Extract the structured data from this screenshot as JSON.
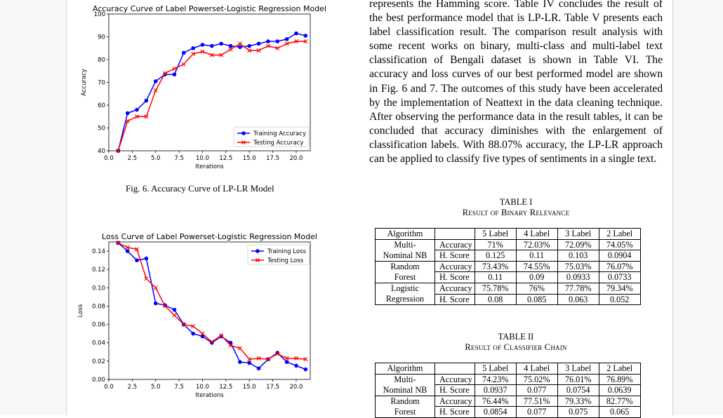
{
  "figure6": {
    "plot_title": "Accuracy Curve of Label Powerset-Logistic Regression Model",
    "xlabel": "Iterations",
    "ylabel": "Accuracy",
    "caption": "Fig. 6.  Accuracy Curve of LP-LR Model",
    "xticks": [
      "0.0",
      "2.5",
      "5.0",
      "7.5",
      "10.0",
      "12.5",
      "15.0",
      "17.5",
      "20.0"
    ],
    "yticks": [
      "40",
      "50",
      "60",
      "70",
      "80",
      "90",
      "100"
    ],
    "legend": [
      "Training Accuracy",
      "Testing Accuracy"
    ]
  },
  "figure7": {
    "plot_title": "Loss Curve of Label Powerset-Logistic Regression Model",
    "xlabel": "Iterations",
    "ylabel": "Loss",
    "xticks": [
      "0.0",
      "2.5",
      "5.0",
      "7.5",
      "10.0",
      "12.5",
      "15.0",
      "17.5",
      "20.0"
    ],
    "yticks": [
      "0.00",
      "0.02",
      "0.04",
      "0.06",
      "0.08",
      "0.10",
      "0.12",
      "0.14"
    ],
    "legend": [
      "Training Loss",
      "Testing Loss"
    ]
  },
  "chart_data": [
    {
      "type": "line",
      "title": "Accuracy Curve of Label Powerset-Logistic Regression Model",
      "xlabel": "Iterations",
      "ylabel": "Accuracy",
      "xlim": [
        0,
        21.5
      ],
      "ylim": [
        40,
        100
      ],
      "x": [
        1,
        2,
        3,
        4,
        5,
        6,
        7,
        8,
        9,
        10,
        11,
        12,
        13,
        14,
        15,
        16,
        17,
        18,
        19,
        20,
        21
      ],
      "series": [
        {
          "name": "Training Accuracy",
          "color": "#0000ff",
          "marker": "circle",
          "values": [
            40,
            56.5,
            58,
            62,
            70.5,
            73.5,
            73.5,
            83,
            85,
            86.5,
            86,
            87,
            86,
            85.5,
            86,
            87,
            88,
            88,
            89,
            91.5,
            90.5
          ]
        },
        {
          "name": "Testing Accuracy",
          "color": "#ff0000",
          "marker": "x",
          "values": [
            40,
            53,
            55,
            55,
            66.5,
            74,
            76,
            78,
            82.5,
            83.5,
            82,
            82,
            84.5,
            87,
            84,
            84,
            86,
            85,
            87,
            88,
            88
          ]
        }
      ],
      "legend_position": "lower right",
      "grid": false
    },
    {
      "type": "line",
      "title": "Loss Curve of Label Powerset-Logistic Regression Model",
      "xlabel": "Iterations",
      "ylabel": "Loss",
      "xlim": [
        0,
        21.5
      ],
      "ylim": [
        0,
        0.15
      ],
      "x": [
        1,
        2,
        3,
        4,
        5,
        6,
        7,
        8,
        9,
        10,
        11,
        12,
        13,
        14,
        15,
        16,
        17,
        18,
        19,
        20,
        21
      ],
      "series": [
        {
          "name": "Training Loss",
          "color": "#0000ff",
          "marker": "circle",
          "values": [
            0.149,
            0.14,
            0.13,
            0.132,
            0.083,
            0.081,
            0.076,
            0.06,
            0.05,
            0.047,
            0.04,
            0.047,
            0.04,
            0.019,
            0.018,
            0.012,
            0.022,
            0.029,
            0.019,
            0.015,
            0.011
          ]
        },
        {
          "name": "Testing Loss",
          "color": "#ff0000",
          "marker": "x",
          "values": [
            0.149,
            0.144,
            0.142,
            0.11,
            0.1,
            0.08,
            0.07,
            0.06,
            0.058,
            0.05,
            0.041,
            0.048,
            0.037,
            0.034,
            0.022,
            0.023,
            0.022,
            0.028,
            0.023,
            0.023,
            0.022
          ]
        }
      ],
      "legend_position": "upper right",
      "grid": false
    }
  ],
  "body_paragraph": "represents the Hamming score. Table IV concludes the result of the best performance model that is LP-LR. Table V presents each label classification result. The comparison result analysis with some recent works on binary, multi-class and multi-label text classification of Bengali dataset is shown in Table VI. The accuracy and loss curves of our best performed model are shown in Fig. 6 and 7. The outcomes of this study have been accelerated by the implementation of Neattext in the data cleaning technique. After observing the performance data in the result tables, it can be concluded that accuracy diminishes with the enlargement of classification labels. With 88.07% accuracy, the LP-LR approach can be applied to classify five types of sentiments in a single text.",
  "table1": {
    "number": "TABLE I",
    "title": "Result of Binary Relevance",
    "header": [
      "Algorithm",
      "",
      "5 Label",
      "4 Label",
      "3 Label",
      "2 Label"
    ],
    "rows": [
      {
        "algo": [
          "Multi-",
          "Nominal NB"
        ],
        "metrics": [
          [
            "Accuracy",
            "71%",
            "72.03%",
            "72.09%",
            "74.05%"
          ],
          [
            "H. Score",
            "0.125",
            "0.11",
            "0.103",
            "0.0904"
          ]
        ]
      },
      {
        "algo": [
          "Random",
          "Forest"
        ],
        "metrics": [
          [
            "Accuracy",
            "73.43%",
            "74.55%",
            "75.03%",
            "76.07%"
          ],
          [
            "H. Score",
            "0.11",
            "0.09",
            "0.0933",
            "0.0733"
          ]
        ]
      },
      {
        "algo": [
          "Logistic",
          "Regression"
        ],
        "metrics": [
          [
            "Accuracy",
            "75.78%",
            "76%",
            "77.78%",
            "79.34%"
          ],
          [
            "H. Score",
            "0.08",
            "0.085",
            "0.063",
            "0.052"
          ]
        ]
      }
    ]
  },
  "table2": {
    "number": "TABLE II",
    "title": "Result of Classifier Chain",
    "header": [
      "Algorithm",
      "",
      "5 Label",
      "4 Label",
      "3 Label",
      "2 Label"
    ],
    "rows": [
      {
        "algo": [
          "Multi-",
          "Nominal NB"
        ],
        "metrics": [
          [
            "Accuracy",
            "74.23%",
            "75.02%",
            "76.01%",
            "76.89%"
          ],
          [
            "H. Score",
            "0.0937",
            "0.077",
            "0.0754",
            "0.0639"
          ]
        ]
      },
      {
        "algo": [
          "Random",
          "Forest"
        ],
        "metrics": [
          [
            "Accuracy",
            "76.44%",
            "77.51%",
            "79.33%",
            "82.77%"
          ],
          [
            "H. Score",
            "0.0854",
            "0.077",
            "0.075",
            "0.065"
          ]
        ]
      }
    ]
  }
}
